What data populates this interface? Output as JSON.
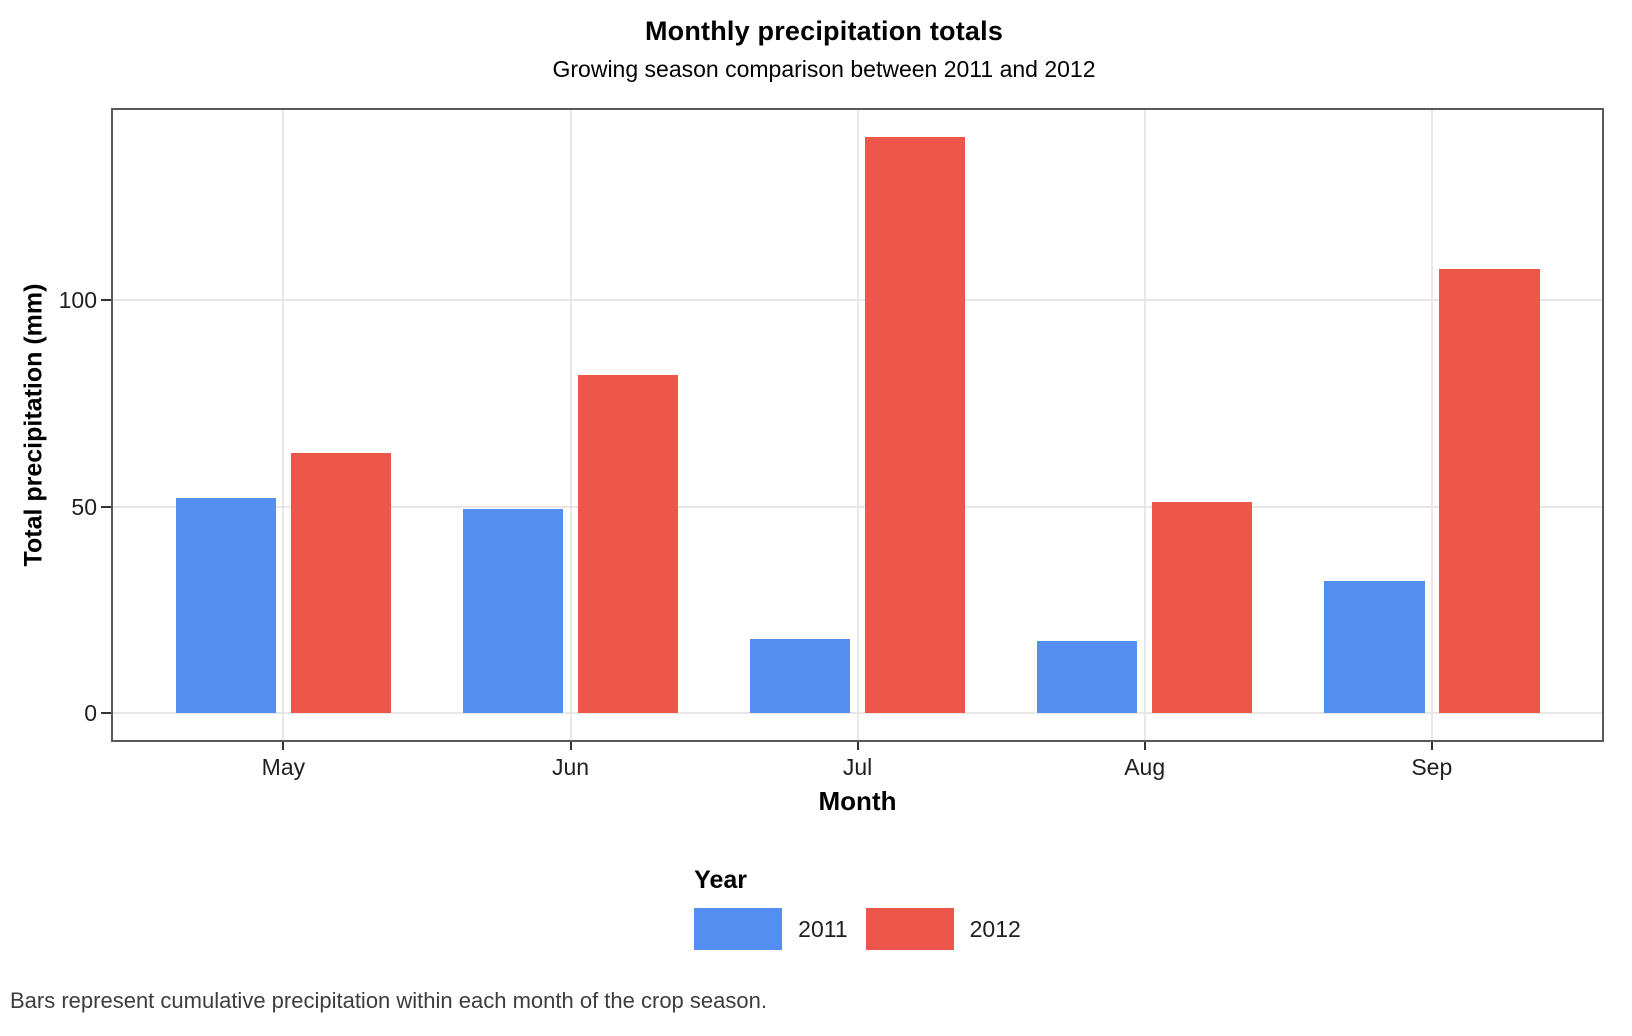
{
  "chart_data": {
    "type": "bar",
    "title": "Monthly precipitation totals",
    "subtitle": "Growing season comparison between 2011 and 2012",
    "xlabel": "Month",
    "ylabel": "Total precipitation (mm)",
    "categories": [
      "May",
      "Jun",
      "Jul",
      "Aug",
      "Sep"
    ],
    "series": [
      {
        "name": "2011",
        "color": "#548EF0",
        "values": [
          52,
          49.5,
          18,
          17.5,
          32
        ]
      },
      {
        "name": "2012",
        "color": "#EC564B",
        "values": [
          63,
          82,
          139.5,
          51,
          107.5
        ]
      }
    ],
    "yticks": [
      0,
      50,
      100
    ],
    "ylim": [
      0,
      146.5
    ],
    "grid": "major gridlines only, light gray on white, boxed panel",
    "legend_title": "Year",
    "legend_position": "bottom-center",
    "caption": "Bars represent cumulative precipitation within each month of the crop season."
  }
}
